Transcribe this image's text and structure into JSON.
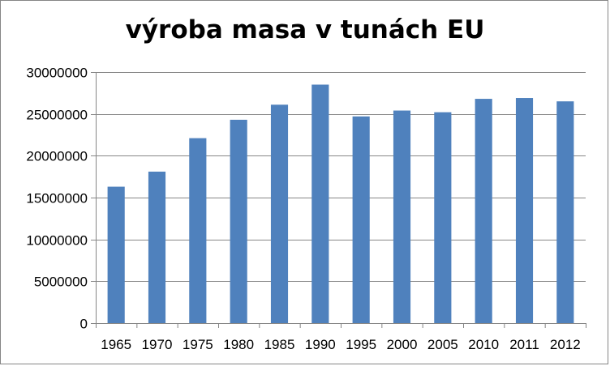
{
  "chart_data": {
    "type": "bar",
    "title": "výroba masa v tunách EU",
    "xlabel": "",
    "ylabel": "",
    "categories": [
      "1965",
      "1970",
      "1975",
      "1980",
      "1985",
      "1990",
      "1995",
      "2000",
      "2005",
      "2010",
      "2011",
      "2012"
    ],
    "series": [
      {
        "values": [
          16300000,
          18100000,
          22100000,
          24300000,
          26100000,
          28500000,
          24700000,
          25400000,
          25200000,
          26800000,
          26900000,
          26500000
        ]
      }
    ],
    "ylim": [
      0,
      30000000
    ],
    "yticks": [
      "0",
      "5000000",
      "10000000",
      "15000000",
      "20000000",
      "25000000",
      "30000000"
    ],
    "grid": true,
    "legend": "none",
    "bar_color": "#4f81bd",
    "grid_color": "#868686"
  }
}
